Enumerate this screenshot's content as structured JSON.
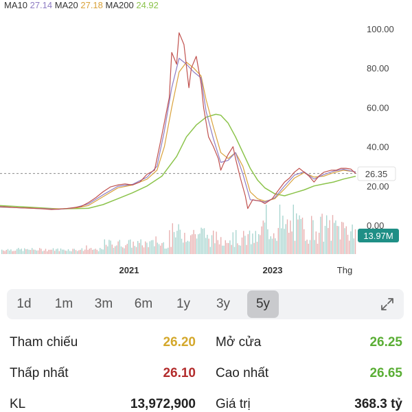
{
  "ma_legend": [
    {
      "name": "MA10",
      "value": "27.14",
      "color": "#8e7cc3"
    },
    {
      "name": "MA20",
      "value": "27.18",
      "color": "#d9a23a"
    },
    {
      "name": "MA200",
      "value": "24.92",
      "color": "#8bc34a"
    }
  ],
  "chart_data": {
    "type": "line",
    "y_tick_labels": [
      "100.00",
      "80.00",
      "60.00",
      "40.00",
      "20.00",
      "0.00"
    ],
    "x_tick_labels": [
      "2021",
      "2023",
      "Thg"
    ],
    "price_ylim": [
      0,
      100
    ],
    "current_price_label": "26.35",
    "volume_label": "13.97M",
    "series": [
      {
        "kind": "price",
        "color": "#c0504d",
        "points": [
          [
            0,
            9.5
          ],
          [
            3,
            9.3
          ],
          [
            6,
            9.0
          ],
          [
            9,
            8.8
          ],
          [
            12,
            8.7
          ],
          [
            15,
            8.5
          ],
          [
            18,
            8.3
          ],
          [
            21,
            8.0
          ],
          [
            24,
            8.2
          ],
          [
            27,
            8.5
          ],
          [
            30,
            9.0
          ],
          [
            33,
            9.5
          ],
          [
            36,
            11.5
          ],
          [
            39,
            14
          ],
          [
            42,
            17
          ],
          [
            45,
            19.5
          ],
          [
            48,
            20.5
          ],
          [
            51,
            21
          ],
          [
            54,
            20.5
          ],
          [
            57,
            22
          ],
          [
            60,
            26
          ],
          [
            63,
            28
          ],
          [
            66,
            46
          ],
          [
            69,
            65
          ],
          [
            70,
            88
          ],
          [
            72,
            82
          ],
          [
            73,
            98
          ],
          [
            75,
            92
          ],
          [
            77,
            70
          ],
          [
            78,
            80
          ],
          [
            80,
            86
          ],
          [
            82,
            72
          ],
          [
            83,
            60
          ],
          [
            85,
            45
          ],
          [
            87,
            40
          ],
          [
            89,
            34
          ],
          [
            90,
            28
          ],
          [
            91,
            31
          ],
          [
            93,
            36
          ],
          [
            95,
            40
          ],
          [
            96,
            34
          ],
          [
            98,
            24
          ],
          [
            100,
            15
          ],
          [
            101,
            8.5
          ],
          [
            103,
            13
          ],
          [
            105,
            12.5
          ],
          [
            106,
            12.5
          ],
          [
            108,
            11
          ],
          [
            111,
            13.5
          ],
          [
            113,
            17
          ],
          [
            116,
            22
          ],
          [
            118,
            24
          ],
          [
            120,
            27
          ],
          [
            122,
            29
          ],
          [
            124,
            27
          ],
          [
            126,
            25
          ],
          [
            128,
            22
          ],
          [
            130,
            25
          ],
          [
            132,
            27
          ],
          [
            135,
            28
          ],
          [
            137,
            28
          ],
          [
            139,
            29
          ],
          [
            141,
            29
          ],
          [
            143,
            28.6
          ],
          [
            145,
            26.35
          ]
        ]
      },
      {
        "kind": "ma10",
        "color": "#8e7cc3",
        "points": [
          [
            0,
            9.3
          ],
          [
            6,
            9.0
          ],
          [
            12,
            8.7
          ],
          [
            18,
            8.4
          ],
          [
            24,
            8.1
          ],
          [
            30,
            8.8
          ],
          [
            36,
            10.8
          ],
          [
            42,
            15.5
          ],
          [
            48,
            19.8
          ],
          [
            54,
            20.8
          ],
          [
            60,
            24.5
          ],
          [
            64,
            30
          ],
          [
            67,
            48
          ],
          [
            70,
            70
          ],
          [
            73,
            85
          ],
          [
            76,
            82
          ],
          [
            79,
            78
          ],
          [
            82,
            75
          ],
          [
            84,
            58
          ],
          [
            87,
            44
          ],
          [
            90,
            32
          ],
          [
            93,
            33
          ],
          [
            96,
            37
          ],
          [
            99,
            26
          ],
          [
            102,
            13
          ],
          [
            105,
            12.5
          ],
          [
            108,
            11.8
          ],
          [
            112,
            14
          ],
          [
            116,
            20
          ],
          [
            120,
            25.5
          ],
          [
            124,
            27.2
          ],
          [
            128,
            23.5
          ],
          [
            132,
            25.8
          ],
          [
            136,
            27.5
          ],
          [
            140,
            28.5
          ],
          [
            145,
            27.14
          ]
        ]
      },
      {
        "kind": "ma20",
        "color": "#d9a23a",
        "points": [
          [
            0,
            9.2
          ],
          [
            6,
            9.0
          ],
          [
            12,
            8.8
          ],
          [
            18,
            8.5
          ],
          [
            24,
            8.3
          ],
          [
            30,
            8.6
          ],
          [
            36,
            10
          ],
          [
            42,
            14.5
          ],
          [
            48,
            19
          ],
          [
            54,
            20.5
          ],
          [
            60,
            23.5
          ],
          [
            64,
            28
          ],
          [
            67,
            40
          ],
          [
            70,
            60
          ],
          [
            73,
            78
          ],
          [
            76,
            83
          ],
          [
            79,
            80
          ],
          [
            82,
            76
          ],
          [
            84,
            64
          ],
          [
            87,
            50
          ],
          [
            90,
            37
          ],
          [
            93,
            34
          ],
          [
            96,
            37
          ],
          [
            99,
            30
          ],
          [
            102,
            17
          ],
          [
            105,
            13.5
          ],
          [
            108,
            12.2
          ],
          [
            112,
            13.5
          ],
          [
            116,
            18.5
          ],
          [
            120,
            24
          ],
          [
            124,
            26.8
          ],
          [
            128,
            24.5
          ],
          [
            132,
            25
          ],
          [
            136,
            26.8
          ],
          [
            140,
            28
          ],
          [
            145,
            27.18
          ]
        ]
      },
      {
        "kind": "ma200",
        "color": "#8bc34a",
        "points": [
          [
            0,
            10
          ],
          [
            12,
            9.2
          ],
          [
            24,
            8.3
          ],
          [
            36,
            8.6
          ],
          [
            42,
            10.5
          ],
          [
            48,
            13.5
          ],
          [
            54,
            16.5
          ],
          [
            60,
            20
          ],
          [
            66,
            25
          ],
          [
            72,
            35
          ],
          [
            76,
            45
          ],
          [
            80,
            51
          ],
          [
            84,
            55
          ],
          [
            88,
            56.5
          ],
          [
            90,
            56
          ],
          [
            93,
            52
          ],
          [
            96,
            45
          ],
          [
            99,
            37
          ],
          [
            102,
            29
          ],
          [
            105,
            23
          ],
          [
            108,
            19
          ],
          [
            112,
            16
          ],
          [
            116,
            15
          ],
          [
            120,
            16.5
          ],
          [
            124,
            18
          ],
          [
            128,
            20
          ],
          [
            132,
            21
          ],
          [
            136,
            22
          ],
          [
            140,
            23.5
          ],
          [
            145,
            24.92
          ]
        ]
      }
    ]
  },
  "timeframes": [
    "1d",
    "1m",
    "3m",
    "6m",
    "1y",
    "3y",
    "5y"
  ],
  "active_timeframe": "5y",
  "stats": {
    "tham_chieu": {
      "label": "Tham chiếu",
      "value": "26.20",
      "color": "#d4a82c"
    },
    "mo_cua": {
      "label": "Mở cửa",
      "value": "26.25",
      "color": "#5aae35"
    },
    "thap_nhat": {
      "label": "Thấp nhất",
      "value": "26.10",
      "color": "#b32d2d"
    },
    "cao_nhat": {
      "label": "Cao nhất",
      "value": "26.65",
      "color": "#5aae35"
    },
    "kl": {
      "label": "KL",
      "value": "13,972,900",
      "color": "#222222"
    },
    "gia_tri": {
      "label": "Giá trị",
      "value": "368.3 tỷ",
      "color": "#222222"
    }
  }
}
